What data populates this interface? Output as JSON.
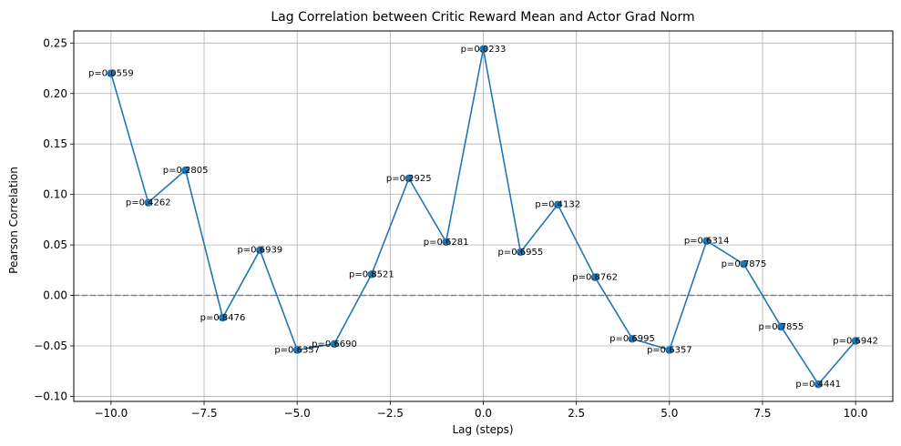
{
  "chart_data": {
    "type": "line",
    "title": "Lag Correlation between Critic Reward Mean and Actor Grad Norm",
    "xlabel": "Lag (steps)",
    "ylabel": "Pearson Correlation",
    "xlim": [
      -11,
      11
    ],
    "ylim": [
      -0.105,
      0.262
    ],
    "xticks": [
      -10.0,
      -7.5,
      -5.0,
      -2.5,
      0.0,
      2.5,
      5.0,
      7.5,
      10.0
    ],
    "xtick_labels": [
      "−10.0",
      "−7.5",
      "−5.0",
      "−2.5",
      "0.0",
      "2.5",
      "5.0",
      "7.5",
      "10.0"
    ],
    "yticks": [
      -0.1,
      -0.05,
      0.0,
      0.05,
      0.1,
      0.15,
      0.2,
      0.25
    ],
    "ytick_labels": [
      "−0.10",
      "−0.05",
      "0.00",
      "0.05",
      "0.10",
      "0.15",
      "0.20",
      "0.25"
    ],
    "grid": true,
    "reference_line": {
      "y": 0,
      "style": "dashed",
      "color": "#808080"
    },
    "colors": {
      "series": "#1f77b4",
      "grid": "#b0b0b0"
    },
    "x": [
      -10,
      -9,
      -8,
      -7,
      -6,
      -5,
      -4,
      -3,
      -2,
      -1,
      0,
      1,
      2,
      3,
      4,
      5,
      6,
      7,
      8,
      9,
      10
    ],
    "y": [
      0.22,
      0.092,
      0.124,
      -0.022,
      0.045,
      -0.054,
      -0.048,
      0.021,
      0.116,
      0.053,
      0.244,
      0.043,
      0.09,
      0.018,
      -0.043,
      -0.054,
      0.054,
      0.031,
      -0.031,
      -0.088,
      -0.045
    ],
    "annotations": [
      "p=0.0559",
      "p=0.4262",
      "p=0.2805",
      "p=0.8476",
      "p=0.6939",
      "p=0.6357",
      "p=0.6690",
      "p=0.8521",
      "p=0.2925",
      "p=0.6281",
      "p=0.0233",
      "p=0.6955",
      "p=0.4132",
      "p=0.8762",
      "p=0.6995",
      "p=0.6357",
      "p=0.6314",
      "p=0.7875",
      "p=0.7855",
      "p=0.4441",
      "p=0.6942"
    ]
  }
}
